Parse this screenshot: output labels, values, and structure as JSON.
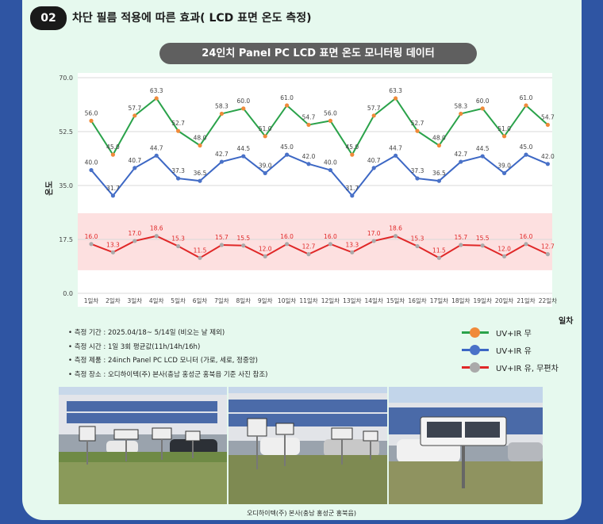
{
  "section": {
    "number": "02",
    "title": "차단 필름 적용에 따른 효과( LCD 표면 온도 측정)"
  },
  "chart_data": {
    "type": "line",
    "title": "24인치 Panel PC LCD 표면 온도 모니터링 데이터",
    "xlabel": "일차",
    "ylabel": "온도",
    "ylim": [
      0,
      70
    ],
    "yticks": [
      "0.0",
      "17.5",
      "35.0",
      "52.5",
      "70.0"
    ],
    "categories": [
      "1일차",
      "2일차",
      "3일차",
      "4일차",
      "5일차",
      "6일차",
      "7일차",
      "8일차",
      "9일차",
      "10일차",
      "11일차",
      "12일차",
      "13일차",
      "14일차",
      "15일차",
      "16일차",
      "17일차",
      "18일차",
      "19일차",
      "20일차",
      "21일차",
      "22일차"
    ],
    "highlight_band": {
      "from": 7.5,
      "to": 26.0,
      "color": "#fde0e0"
    },
    "series": [
      {
        "name": "UV+IR 무",
        "line_color": "#2aa24a",
        "marker_color": "#f08a3a",
        "values": [
          56.0,
          45.0,
          57.7,
          63.3,
          52.7,
          48.0,
          58.3,
          60.0,
          51.0,
          61.0,
          54.7,
          56.0,
          45.0,
          57.7,
          63.3,
          52.7,
          48.0,
          58.3,
          60.0,
          51.0,
          61.0,
          54.7
        ],
        "labels": [
          "56.0",
          "45.0",
          "57.7",
          "63.3",
          "52.7",
          "48.0",
          "58.3",
          "60.0",
          "51.0",
          "61.0",
          "54.7",
          "56.0",
          "45.0",
          "57.7",
          "63.3",
          "52.7",
          "48.0",
          "58.3",
          "60.0",
          "51.0",
          "61.0",
          "54.7"
        ]
      },
      {
        "name": "UV+IR 유",
        "line_color": "#3c67c4",
        "marker_color": "#4a72c8",
        "values": [
          40.0,
          31.7,
          40.7,
          44.7,
          37.3,
          36.5,
          42.7,
          44.5,
          39.0,
          45.0,
          42.0,
          40.0,
          31.7,
          40.7,
          44.7,
          37.3,
          36.5,
          42.7,
          44.5,
          39.0,
          45.0,
          42.0
        ],
        "labels": [
          "40.0",
          "31.7",
          "40.7",
          "44.7",
          "37.3",
          "36.5",
          "42.7",
          "44.5",
          "39.0",
          "45.0",
          "42.0",
          "40.0",
          "31.7",
          "40.7",
          "44.7",
          "37.3",
          "36.5",
          "42.7",
          "44.5",
          "39.0",
          "45.0",
          "42.0"
        ]
      },
      {
        "name": "UV+IR 유, 무편차",
        "line_color": "#e02828",
        "marker_color": "#aaaaaa",
        "values": [
          16.0,
          13.3,
          17.0,
          18.6,
          15.3,
          11.5,
          15.7,
          15.5,
          12.0,
          16.0,
          12.7,
          16.0,
          13.3,
          17.0,
          18.6,
          15.3,
          11.5,
          15.7,
          15.5,
          12.0,
          16.0,
          12.7
        ],
        "labels": [
          "16.0",
          "13.3",
          "17.0",
          "18.6",
          "15.3",
          "11.5",
          "15.7",
          "15.5",
          "12.0",
          "16.0",
          "12.7",
          "16.0",
          "13.3",
          "17.0",
          "18.6",
          "15.3",
          "11.5",
          "15.7",
          "15.5",
          "12.0",
          "16.0",
          "12.7"
        ]
      }
    ]
  },
  "notes": [
    "측정 기간 : 2025.04/18~ 5/14일 (비오는 날 제외)",
    "측정 시간 : 1일 3회 평균값(11h/14h/16h)",
    "측정 제품 : 24inch  Panel PC LCD 모니터 (가로, 세로, 정중앙)",
    "측정 장소 : 오디하이텍(주) 본사(충남 홍성군 홍북읍 기준 사진 참조)"
  ],
  "caption": "오디하이텍(주) 본사(충남 홍성군 홍북읍)"
}
